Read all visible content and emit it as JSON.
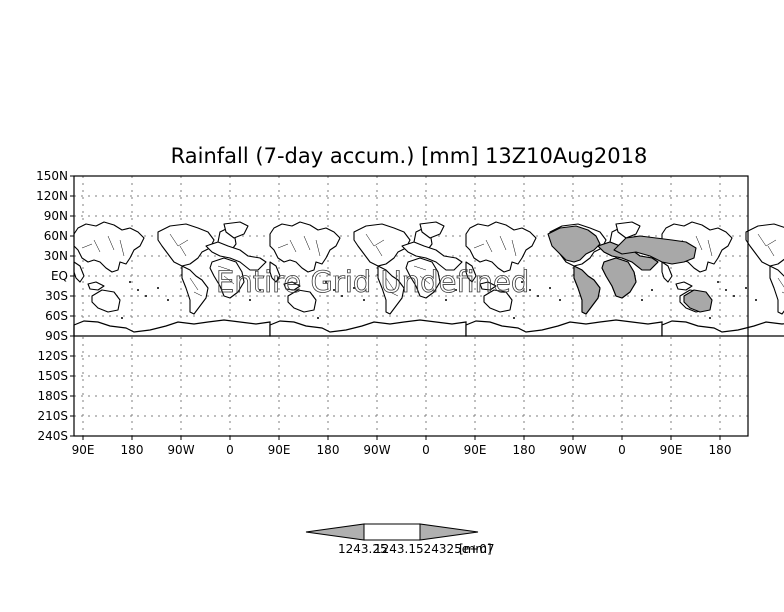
{
  "title": "Rainfall (7-day accum.) [mm] 13Z10Aug2018",
  "watermark": "Entire Grid Undefined",
  "y_axis_labels": [
    "150N",
    "120N",
    "90N",
    "60N",
    "30N",
    "EQ",
    "30S",
    "60S",
    "90S",
    "120S",
    "150S",
    "180S",
    "210S",
    "240S"
  ],
  "x_axis_labels": [
    "90E",
    "180",
    "90W",
    "0",
    "90E",
    "180",
    "90W",
    "0",
    "90E",
    "180",
    "90W",
    "0",
    "90E",
    "180"
  ],
  "colorbar": {
    "label_left": "1243.25",
    "label_right": "1243.1524325e+07",
    "unit": "[mm]"
  },
  "colors": {
    "land": "#ffffff",
    "rain_shading": "#a8a8a8",
    "gridlines": "#7f7f7f"
  }
}
